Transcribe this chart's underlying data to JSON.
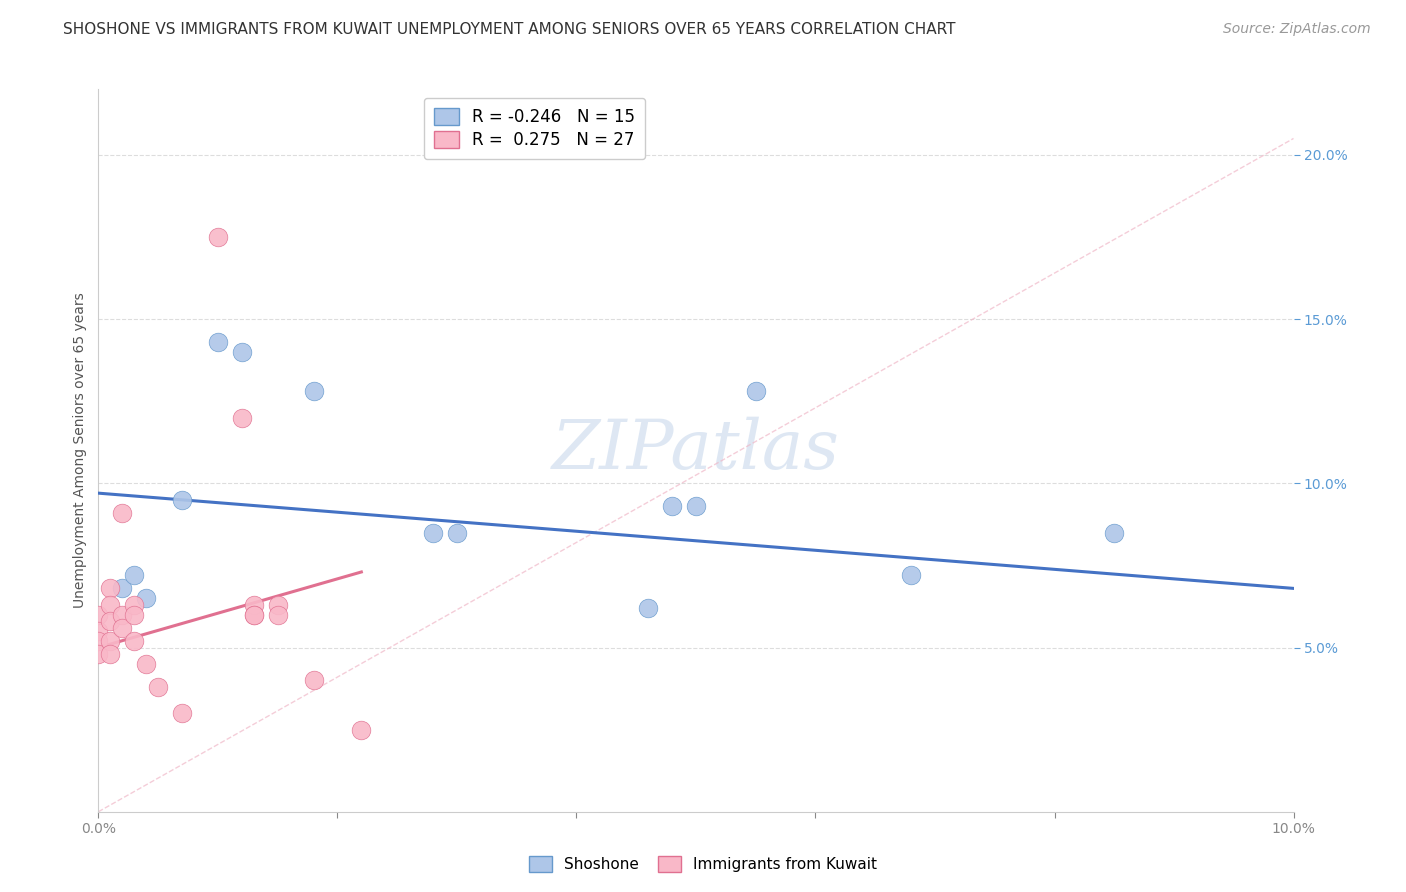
{
  "title": "SHOSHONE VS IMMIGRANTS FROM KUWAIT UNEMPLOYMENT AMONG SENIORS OVER 65 YEARS CORRELATION CHART",
  "source": "Source: ZipAtlas.com",
  "ylabel": "Unemployment Among Seniors over 65 years",
  "xlim": [
    0.0,
    0.1
  ],
  "ylim": [
    0.0,
    0.22
  ],
  "yticks": [
    0.05,
    0.1,
    0.15,
    0.2
  ],
  "ytick_labels": [
    "5.0%",
    "10.0%",
    "15.0%",
    "20.0%"
  ],
  "xticks": [
    0.0,
    0.02,
    0.04,
    0.06,
    0.08,
    0.1
  ],
  "xtick_labels": [
    "0.0%",
    "",
    "",
    "",
    "",
    "10.0%"
  ],
  "legend_entries": [
    {
      "label": "R = -0.246   N = 15",
      "color": "#aec6e8",
      "edge": "#6699cc"
    },
    {
      "label": "R =  0.275   N = 27",
      "color": "#f9b8c8",
      "edge": "#e07090"
    }
  ],
  "watermark": "ZIPatlas",
  "shoshone_color": "#aec6e8",
  "shoshone_edge": "#6699cc",
  "kuwait_color": "#f9b8c8",
  "kuwait_edge": "#e07090",
  "shoshone_points": [
    [
      0.002,
      0.068
    ],
    [
      0.003,
      0.072
    ],
    [
      0.004,
      0.065
    ],
    [
      0.007,
      0.095
    ],
    [
      0.01,
      0.143
    ],
    [
      0.012,
      0.14
    ],
    [
      0.018,
      0.128
    ],
    [
      0.028,
      0.085
    ],
    [
      0.03,
      0.085
    ],
    [
      0.046,
      0.062
    ],
    [
      0.048,
      0.093
    ],
    [
      0.05,
      0.093
    ],
    [
      0.055,
      0.128
    ],
    [
      0.068,
      0.072
    ],
    [
      0.085,
      0.085
    ]
  ],
  "kuwait_points": [
    [
      0.0,
      0.06
    ],
    [
      0.0,
      0.055
    ],
    [
      0.0,
      0.052
    ],
    [
      0.0,
      0.048
    ],
    [
      0.001,
      0.068
    ],
    [
      0.001,
      0.063
    ],
    [
      0.001,
      0.058
    ],
    [
      0.001,
      0.052
    ],
    [
      0.001,
      0.048
    ],
    [
      0.002,
      0.091
    ],
    [
      0.002,
      0.06
    ],
    [
      0.002,
      0.056
    ],
    [
      0.003,
      0.063
    ],
    [
      0.003,
      0.06
    ],
    [
      0.003,
      0.052
    ],
    [
      0.004,
      0.045
    ],
    [
      0.005,
      0.038
    ],
    [
      0.007,
      0.03
    ],
    [
      0.01,
      0.175
    ],
    [
      0.012,
      0.12
    ],
    [
      0.013,
      0.063
    ],
    [
      0.013,
      0.06
    ],
    [
      0.013,
      0.06
    ],
    [
      0.015,
      0.063
    ],
    [
      0.015,
      0.06
    ],
    [
      0.018,
      0.04
    ],
    [
      0.022,
      0.025
    ]
  ],
  "shoshone_line": {
    "x0": 0.0,
    "y0": 0.097,
    "x1": 0.1,
    "y1": 0.068
  },
  "kuwait_line": {
    "x0": 0.0,
    "y0": 0.05,
    "x1": 0.022,
    "y1": 0.073
  },
  "kuwait_dashed_line": {
    "x0": 0.0,
    "y0": 0.0,
    "x1": 0.1,
    "y1": 0.205
  },
  "title_fontsize": 11,
  "source_fontsize": 10,
  "axis_label_fontsize": 10,
  "tick_fontsize": 10,
  "legend_fontsize": 12,
  "watermark_fontsize": 50,
  "background_color": "#ffffff",
  "grid_color": "#dddddd"
}
